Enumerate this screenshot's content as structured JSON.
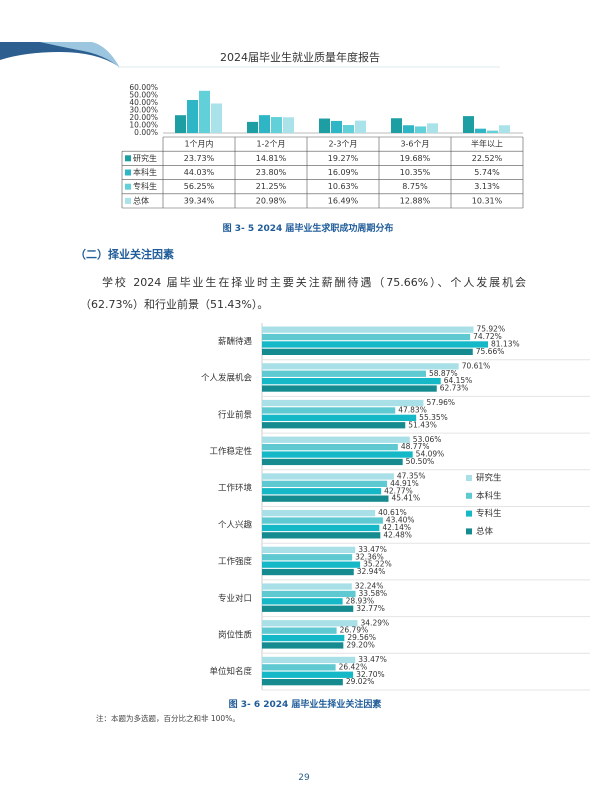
{
  "header": {
    "title": "2024届毕业生就业质量年度报告"
  },
  "section": {
    "heading": "（二）择业关注因素"
  },
  "paragraph": "学校 2024 届毕业生在择业时主要关注薪酬待遇（75.66%）、个人发展机会（62.73%）和行业前景（51.43%）。",
  "footnote": "注：本题为多选题，百分比之和非 100%。",
  "page_number": "29",
  "chart_data": [
    {
      "type": "bar",
      "title": "图 3- 5  2024 届毕业生求职成功周期分布",
      "categories": [
        "1个月内",
        "1-2个月",
        "2-3个月",
        "3-6个月",
        "半年以上"
      ],
      "series": [
        {
          "name": "研究生",
          "color": "#1c9ea3",
          "values": [
            23.73,
            14.81,
            19.27,
            19.68,
            22.52
          ],
          "value_labels": [
            "23.73%",
            "14.81%",
            "19.27%",
            "19.68%",
            "22.52%"
          ]
        },
        {
          "name": "本科生",
          "color": "#2fb6c6",
          "values": [
            44.03,
            23.8,
            16.09,
            10.35,
            5.74
          ],
          "value_labels": [
            "44.03%",
            "23.80%",
            "16.09%",
            "10.35%",
            "5.74%"
          ]
        },
        {
          "name": "专科生",
          "color": "#62d0d9",
          "values": [
            56.25,
            21.25,
            10.63,
            8.75,
            3.13
          ],
          "value_labels": [
            "56.25%",
            "21.25%",
            "10.63%",
            "8.75%",
            "3.13%"
          ]
        },
        {
          "name": "总体",
          "color": "#a9e2e8",
          "values": [
            39.34,
            20.98,
            16.49,
            12.88,
            10.31
          ],
          "value_labels": [
            "39.34%",
            "20.98%",
            "16.49%",
            "12.88%",
            "10.31%"
          ]
        }
      ],
      "ylim": [
        0,
        60
      ],
      "yticks": [
        {
          "value": 0,
          "label": "0.00%"
        },
        {
          "value": 10,
          "label": "10.00%"
        },
        {
          "value": 20,
          "label": "20.00%"
        },
        {
          "value": 30,
          "label": "30.00%"
        },
        {
          "value": 40,
          "label": "40.00%"
        },
        {
          "value": 50,
          "label": "50.00%"
        },
        {
          "value": 60,
          "label": "60.00%"
        }
      ]
    },
    {
      "type": "barh",
      "title": "图 3- 6  2024 届毕业生择业关注因素",
      "categories": [
        "薪酬待遇",
        "个人发展机会",
        "行业前景",
        "工作稳定性",
        "工作环境",
        "个人兴趣",
        "工作强度",
        "专业对口",
        "岗位性质",
        "单位知名度"
      ],
      "series": [
        {
          "name": "研究生",
          "color": "#a9e0e8",
          "values": [
            75.92,
            70.61,
            57.96,
            53.06,
            47.35,
            40.61,
            33.47,
            32.24,
            34.29,
            33.47
          ],
          "value_labels": [
            "75.92%",
            "70.61%",
            "57.96%",
            "53.06%",
            "47.35%",
            "40.61%",
            "33.47%",
            "32.24%",
            "34.29%",
            "33.47%"
          ]
        },
        {
          "name": "本科生",
          "color": "#5fc9d2",
          "values": [
            74.72,
            58.87,
            47.83,
            48.77,
            44.91,
            43.4,
            32.36,
            33.58,
            26.79,
            26.42
          ],
          "value_labels": [
            "74.72%",
            "58.87%",
            "47.83%",
            "48.77%",
            "44.91%",
            "43.40%",
            "32.36%",
            "33.58%",
            "26.79%",
            "26.42%"
          ]
        },
        {
          "name": "专科生",
          "color": "#14b8c6",
          "values": [
            81.13,
            64.15,
            55.35,
            54.09,
            42.77,
            42.14,
            35.22,
            28.93,
            29.56,
            32.7
          ],
          "value_labels": [
            "81.13%",
            "64.15%",
            "55.35%",
            "54.09%",
            "42.77%",
            "42.14%",
            "35.22%",
            "28.93%",
            "29.56%",
            "32.70%"
          ]
        },
        {
          "name": "总体",
          "color": "#158b90",
          "values": [
            75.66,
            62.73,
            51.43,
            50.5,
            45.41,
            42.48,
            32.94,
            32.77,
            29.2,
            29.02
          ],
          "value_labels": [
            "75.66%",
            "62.73%",
            "51.43%",
            "50.50%",
            "45.41%",
            "42.48%",
            "32.94%",
            "32.77%",
            "29.20%",
            "29.02%"
          ]
        }
      ],
      "legend": "right"
    }
  ]
}
